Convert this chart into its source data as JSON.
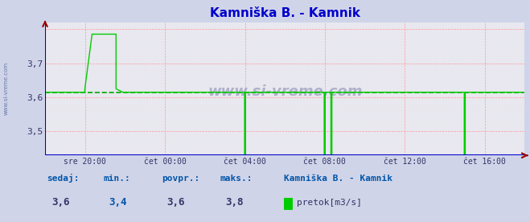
{
  "title": "Kamniška B. - Kamnik",
  "title_color": "#0000cc",
  "bg_color": "#d0d4e8",
  "plot_bg_color": "#e8e8f0",
  "grid_color_major": "#ff9999",
  "grid_color_minor": "#ffdddd",
  "line_color": "#00cc00",
  "avg_line_color": "#00aa00",
  "axis_line_color": "#0000cc",
  "arrow_color": "#990000",
  "tick_color": "#333366",
  "watermark": "www.si-vreme.com",
  "watermark_color": "#9999bb",
  "sidebar_text": "www.si-vreme.com",
  "sidebar_color": "#6677aa",
  "yticks": [
    3.5,
    3.6,
    3.7
  ],
  "ylim": [
    3.43,
    3.82
  ],
  "xtick_labels": [
    "sre 20:00",
    "čet 00:00",
    "čet 04:00",
    "čet 08:00",
    "čet 12:00",
    "čet 16:00"
  ],
  "xtick_positions": [
    0.083,
    0.25,
    0.417,
    0.583,
    0.75,
    0.917
  ],
  "avg_value": 3.615,
  "footer_labels": [
    "sedaj:",
    "min.:",
    "povpr.:",
    "maks.:"
  ],
  "footer_values": [
    "3,6",
    "3,4",
    "3,6",
    "3,8"
  ],
  "footer_label_colors": [
    "#0055aa",
    "#0055aa",
    "#0055aa",
    "#0055aa"
  ],
  "footer_value_colors": [
    "#333366",
    "#0055aa",
    "#333366",
    "#333366"
  ],
  "footer_station": "Kamniška B. - Kamnik",
  "footer_legend_label": "pretok[m3/s]",
  "footer_legend_color": "#00cc00",
  "t_points": [
    0.0,
    0.083,
    0.083,
    0.098,
    0.098,
    0.148,
    0.148,
    0.162,
    0.162,
    0.416,
    0.416,
    0.418,
    0.418,
    0.428,
    0.428,
    0.582,
    0.582,
    0.584,
    0.584,
    0.59,
    0.59,
    0.596,
    0.596,
    0.598,
    0.598,
    0.604,
    0.604,
    0.874,
    0.874,
    0.876,
    0.876,
    0.886,
    0.886,
    1.0
  ],
  "y_points": [
    3.615,
    3.615,
    3.625,
    3.785,
    3.785,
    3.785,
    3.625,
    3.615,
    3.615,
    3.615,
    3.43,
    3.43,
    3.615,
    3.615,
    3.615,
    3.615,
    3.43,
    3.43,
    3.615,
    3.615,
    3.615,
    3.615,
    3.43,
    3.43,
    3.615,
    3.615,
    3.615,
    3.615,
    3.43,
    3.43,
    3.615,
    3.615,
    3.615,
    3.615
  ]
}
